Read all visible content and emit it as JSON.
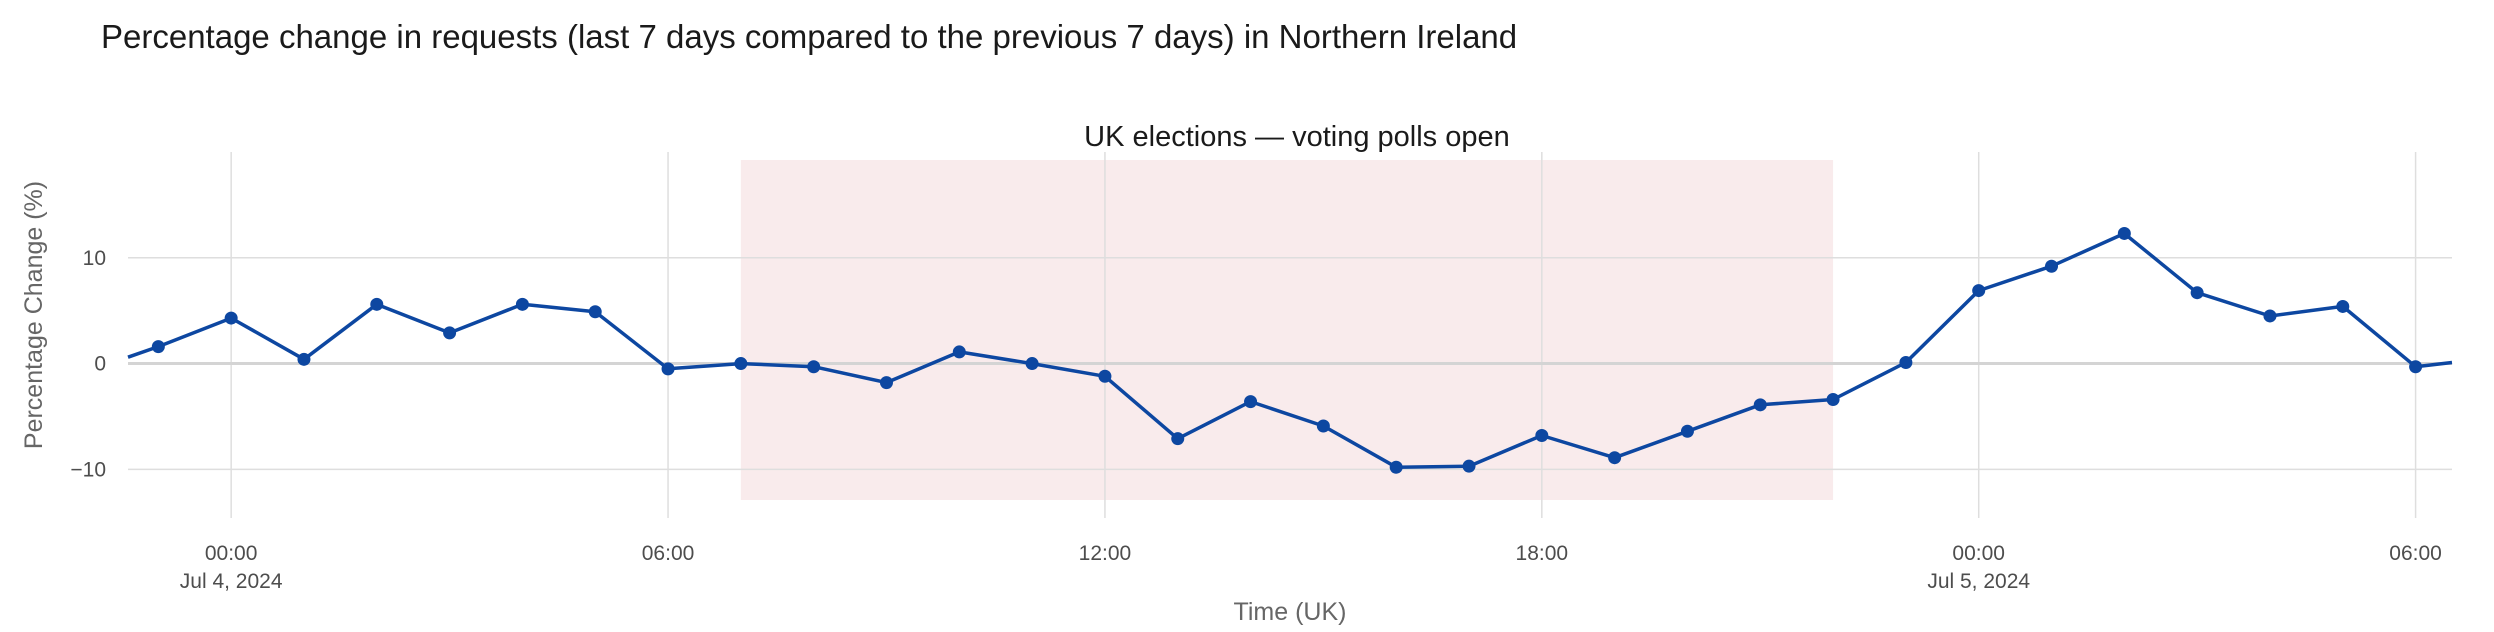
{
  "chart_data": {
    "type": "line",
    "title": "Percentage change in requests (last 7 days compared to the previous 7 days) in Northern Ireland",
    "xlabel": "Time (UK)",
    "ylabel": "Percentage Change (%)",
    "x_range": [
      "2024-07-03T22:35",
      "2024-07-05T06:30"
    ],
    "ylim": [
      -14.6,
      20.0
    ],
    "grid": true,
    "zero_line": true,
    "x_ticks": [
      {
        "t": "2024-07-04T00:00",
        "label": "00:00",
        "sublabel": "Jul 4, 2024"
      },
      {
        "t": "2024-07-04T06:00",
        "label": "06:00",
        "sublabel": ""
      },
      {
        "t": "2024-07-04T12:00",
        "label": "12:00",
        "sublabel": ""
      },
      {
        "t": "2024-07-04T18:00",
        "label": "18:00",
        "sublabel": ""
      },
      {
        "t": "2024-07-05T00:00",
        "label": "00:00",
        "sublabel": "Jul 5, 2024"
      },
      {
        "t": "2024-07-05T06:00",
        "label": "06:00",
        "sublabel": ""
      }
    ],
    "y_ticks": [
      {
        "v": 10,
        "label": "10"
      },
      {
        "v": 0,
        "label": "0"
      },
      {
        "v": -10,
        "label": "−10"
      }
    ],
    "highlight": {
      "start": "2024-07-04T07:00",
      "end": "2024-07-04T22:00",
      "label": "UK elections — voting polls open",
      "color": "#f9ebec"
    },
    "series": [
      {
        "color": "#0d47a1",
        "points": [
          [
            "2024-07-03T22:35",
            0.6
          ],
          [
            "2024-07-03T23:00",
            1.6
          ],
          [
            "2024-07-04T00:00",
            4.3
          ],
          [
            "2024-07-04T01:00",
            0.4
          ],
          [
            "2024-07-04T02:00",
            5.6
          ],
          [
            "2024-07-04T03:00",
            2.9
          ],
          [
            "2024-07-04T04:00",
            5.6
          ],
          [
            "2024-07-04T05:00",
            4.9
          ],
          [
            "2024-07-04T06:00",
            -0.5
          ],
          [
            "2024-07-04T07:00",
            0.0
          ],
          [
            "2024-07-04T08:00",
            -0.3
          ],
          [
            "2024-07-04T09:00",
            -1.8
          ],
          [
            "2024-07-04T10:00",
            1.1
          ],
          [
            "2024-07-04T11:00",
            0.0
          ],
          [
            "2024-07-04T12:00",
            -1.2
          ],
          [
            "2024-07-04T13:00",
            -7.1
          ],
          [
            "2024-07-04T14:00",
            -3.6
          ],
          [
            "2024-07-04T15:00",
            -5.9
          ],
          [
            "2024-07-04T16:00",
            -9.8
          ],
          [
            "2024-07-04T17:00",
            -9.7
          ],
          [
            "2024-07-04T18:00",
            -6.8
          ],
          [
            "2024-07-04T19:00",
            -8.9
          ],
          [
            "2024-07-04T20:00",
            -6.4
          ],
          [
            "2024-07-04T21:00",
            -3.9
          ],
          [
            "2024-07-04T22:00",
            -3.4
          ],
          [
            "2024-07-04T23:00",
            0.1
          ],
          [
            "2024-07-05T00:00",
            6.9
          ],
          [
            "2024-07-05T01:00",
            9.2
          ],
          [
            "2024-07-05T02:00",
            12.3
          ],
          [
            "2024-07-05T03:00",
            6.7
          ],
          [
            "2024-07-05T04:00",
            4.5
          ],
          [
            "2024-07-05T05:00",
            5.4
          ],
          [
            "2024-07-05T06:00",
            -0.3
          ],
          [
            "2024-07-05T06:30",
            0.1
          ]
        ]
      }
    ]
  }
}
